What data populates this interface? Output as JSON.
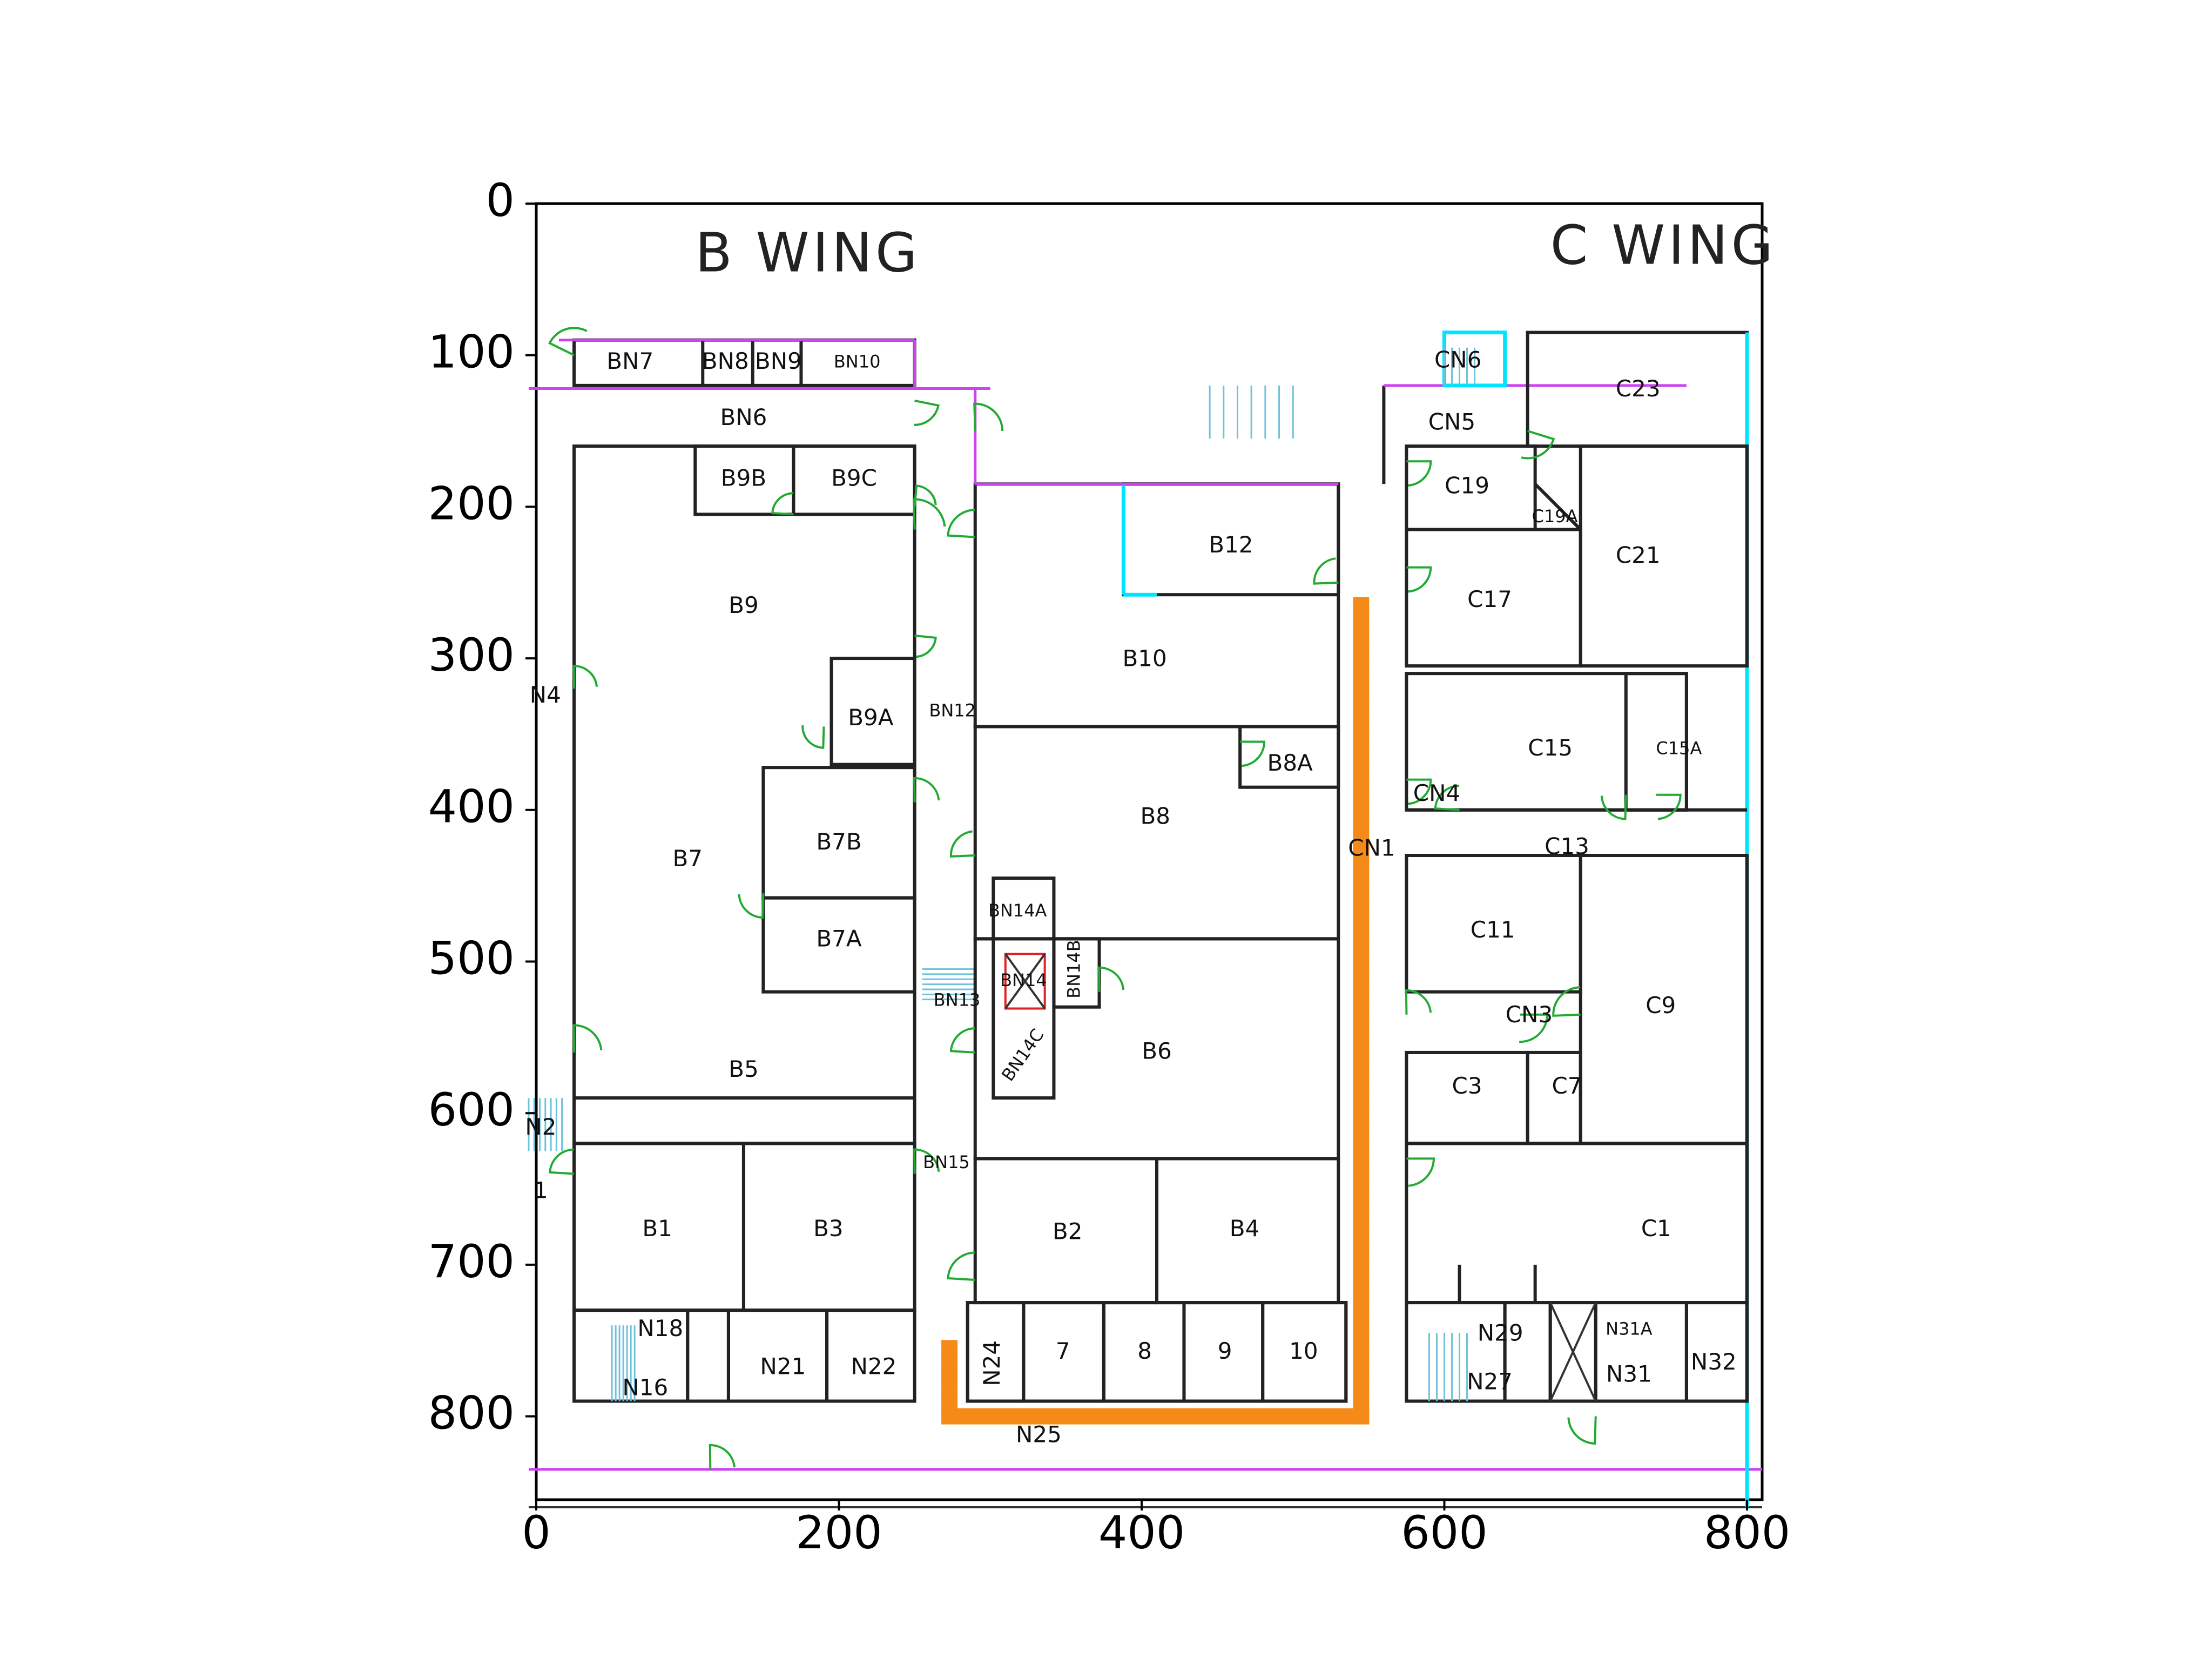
{
  "map": {
    "wing_labels": [
      {
        "id": "b-wing",
        "text": "B  WING",
        "x": 105,
        "y": 35
      },
      {
        "id": "c-wing",
        "text": "C  WING",
        "x": 670,
        "y": 30
      }
    ],
    "axes": {
      "x_ticks": [
        0,
        200,
        400,
        600,
        800
      ],
      "y_ticks": [
        0,
        100,
        200,
        300,
        400,
        500,
        600,
        700,
        800
      ],
      "xlim": [
        0,
        810
      ],
      "ylim": [
        855,
        0
      ]
    },
    "rooms": [
      {
        "label": "BN7",
        "x": 62,
        "y": 105
      },
      {
        "label": "BN8",
        "x": 125,
        "y": 105
      },
      {
        "label": "BN9",
        "x": 160,
        "y": 105
      },
      {
        "label": "BN10",
        "x": 212,
        "y": 105
      },
      {
        "label": "BN6",
        "x": 137,
        "y": 142
      },
      {
        "label": "B9B",
        "x": 137,
        "y": 182
      },
      {
        "label": "B9C",
        "x": 210,
        "y": 182
      },
      {
        "label": "B9",
        "x": 137,
        "y": 266
      },
      {
        "label": "B9A",
        "x": 221,
        "y": 340
      },
      {
        "label": "BN12",
        "x": 275,
        "y": 335
      },
      {
        "label": "N4",
        "x": 6,
        "y": 325
      },
      {
        "label": "B7",
        "x": 100,
        "y": 433
      },
      {
        "label": "B7B",
        "x": 200,
        "y": 422
      },
      {
        "label": "B7A",
        "x": 200,
        "y": 486
      },
      {
        "label": "BN13",
        "x": 278,
        "y": 526
      },
      {
        "label": "B5",
        "x": 137,
        "y": 572
      },
      {
        "label": "N2",
        "x": 3,
        "y": 610
      },
      {
        "label": "BN15",
        "x": 271,
        "y": 633
      },
      {
        "label": "1",
        "x": 3,
        "y": 652
      },
      {
        "label": "B1",
        "x": 80,
        "y": 677
      },
      {
        "label": "B3",
        "x": 193,
        "y": 677
      },
      {
        "label": "N18",
        "x": 82,
        "y": 743
      },
      {
        "label": "N16",
        "x": 72,
        "y": 782
      },
      {
        "label": "N21",
        "x": 163,
        "y": 768
      },
      {
        "label": "N22",
        "x": 223,
        "y": 768
      },
      {
        "label": "B12",
        "x": 459,
        "y": 226
      },
      {
        "label": "B10",
        "x": 402,
        "y": 301
      },
      {
        "label": "B8A",
        "x": 498,
        "y": 370
      },
      {
        "label": "B8",
        "x": 409,
        "y": 405
      },
      {
        "label": "BN14A",
        "x": 318,
        "y": 467
      },
      {
        "label": "BN14",
        "x": 322,
        "y": 513
      },
      {
        "label": "BN14B",
        "x": 356,
        "y": 505
      },
      {
        "label": "BN14C",
        "x": 322,
        "y": 562
      },
      {
        "label": "B6",
        "x": 410,
        "y": 560
      },
      {
        "label": "B2",
        "x": 351,
        "y": 679
      },
      {
        "label": "B4",
        "x": 468,
        "y": 677
      },
      {
        "label": "N24",
        "x": 302,
        "y": 765
      },
      {
        "label": "7",
        "x": 348,
        "y": 758
      },
      {
        "label": "8",
        "x": 402,
        "y": 758
      },
      {
        "label": "9",
        "x": 455,
        "y": 758
      },
      {
        "label": "10",
        "x": 507,
        "y": 758
      },
      {
        "label": "N25",
        "x": 332,
        "y": 813
      },
      {
        "label": "CN6",
        "x": 609,
        "y": 104
      },
      {
        "label": "CN5",
        "x": 605,
        "y": 145
      },
      {
        "label": "C23",
        "x": 728,
        "y": 123
      },
      {
        "label": "C19",
        "x": 615,
        "y": 187
      },
      {
        "label": "C19A",
        "x": 673,
        "y": 207
      },
      {
        "label": "C21",
        "x": 728,
        "y": 233
      },
      {
        "label": "C17",
        "x": 630,
        "y": 262
      },
      {
        "label": "C15",
        "x": 670,
        "y": 360
      },
      {
        "label": "C15A",
        "x": 755,
        "y": 360
      },
      {
        "label": "CN4",
        "x": 595,
        "y": 390
      },
      {
        "label": "CN1",
        "x": 552,
        "y": 426
      },
      {
        "label": "C13",
        "x": 681,
        "y": 425
      },
      {
        "label": "C11",
        "x": 632,
        "y": 480
      },
      {
        "label": "CN3",
        "x": 656,
        "y": 536
      },
      {
        "label": "C9",
        "x": 743,
        "y": 530
      },
      {
        "label": "C3",
        "x": 615,
        "y": 583
      },
      {
        "label": "C7",
        "x": 681,
        "y": 583
      },
      {
        "label": "C1",
        "x": 740,
        "y": 677
      },
      {
        "label": "N29",
        "x": 637,
        "y": 746
      },
      {
        "label": "N31A",
        "x": 722,
        "y": 743
      },
      {
        "label": "N31",
        "x": 722,
        "y": 773
      },
      {
        "label": "N27",
        "x": 630,
        "y": 778
      },
      {
        "label": "N32",
        "x": 778,
        "y": 765
      }
    ],
    "route": {
      "color": "#f58a18",
      "points": [
        [
          273,
          755
        ],
        [
          273,
          800
        ],
        [
          545,
          800
        ],
        [
          545,
          255
        ]
      ]
    }
  }
}
